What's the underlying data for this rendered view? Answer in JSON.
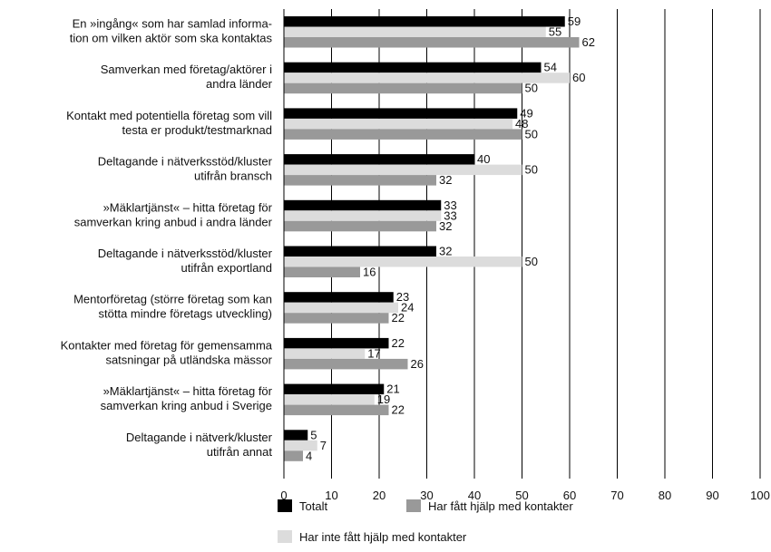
{
  "chart_data": {
    "type": "bar",
    "orientation": "horizontal",
    "categories": [
      [
        "En »ingång« som har samlad informa-",
        "tion om vilken aktör som ska kontaktas"
      ],
      [
        "Samverkan med företag/aktörer i",
        "andra länder"
      ],
      [
        "Kontakt med potentiella företag som vill",
        "testa er produkt/testmarknad"
      ],
      [
        "Deltagande i nätverksstöd/kluster",
        "utifrån bransch"
      ],
      [
        "»Mäklartjänst« – hitta företag för",
        "samverkan kring anbud i andra länder"
      ],
      [
        "Deltagande i nätverksstöd/kluster",
        "utifrån exportland"
      ],
      [
        "Mentorföretag (större företag som kan",
        "stötta mindre företags utveckling)"
      ],
      [
        "Kontakter med företag för gemensamma",
        "satsningar på utländska mässor"
      ],
      [
        "»Mäklartjänst« – hitta företag för",
        "samverkan kring anbud i Sverige"
      ],
      [
        "Deltagande i nätverk/kluster",
        "utifrån annat"
      ]
    ],
    "series": [
      {
        "name": "Totalt",
        "color": "#000000",
        "values": [
          59,
          54,
          49,
          40,
          33,
          32,
          23,
          22,
          21,
          5
        ]
      },
      {
        "name": "Har inte fått hjälp med kontakter",
        "color": "#dcdcdc",
        "values": [
          55,
          60,
          48,
          50,
          33,
          50,
          24,
          17,
          19,
          7
        ]
      },
      {
        "name": "Har fått hjälp med kontakter",
        "color": "#999999",
        "values": [
          62,
          50,
          50,
          32,
          32,
          16,
          22,
          26,
          22,
          4
        ]
      }
    ],
    "xlim": [
      0,
      100
    ],
    "xticks": [
      "0",
      "10",
      "20",
      "30",
      "40",
      "50",
      "60",
      "70",
      "80",
      "90",
      "100"
    ],
    "grid": "vertical",
    "legend_position": "bottom-left"
  }
}
